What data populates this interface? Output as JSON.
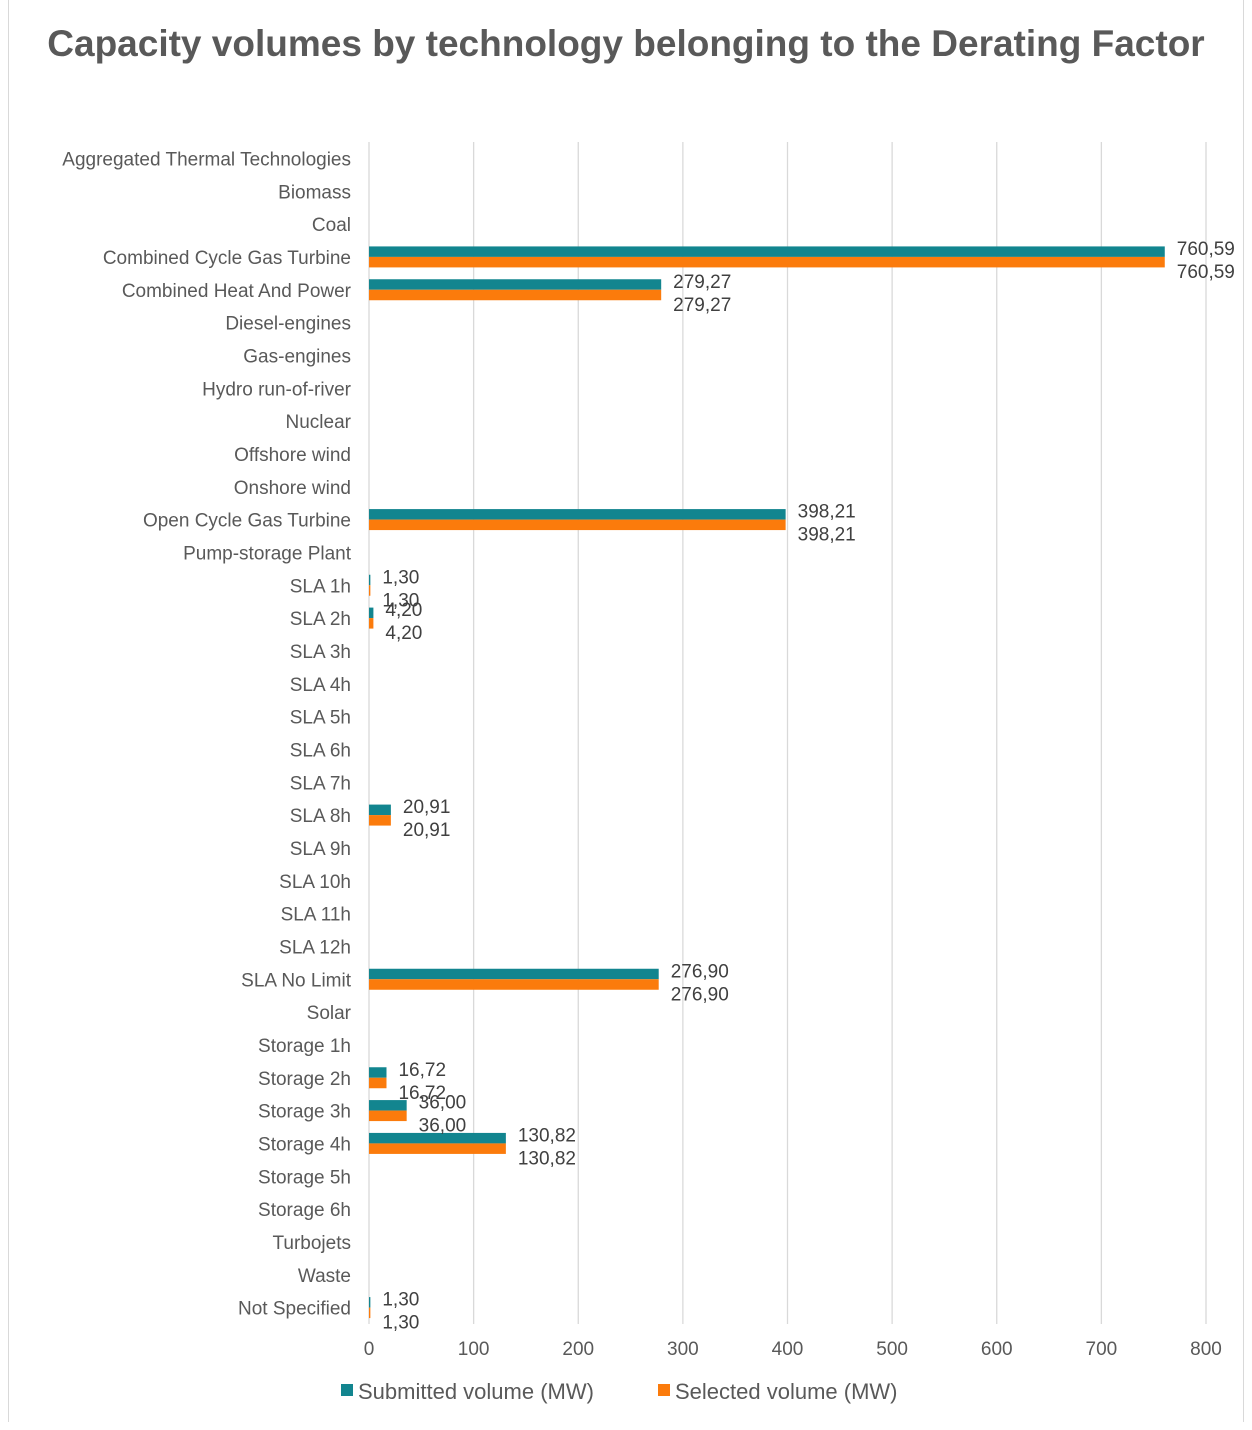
{
  "chart_data": {
    "type": "bar",
    "orientation": "horizontal",
    "title": "Capacity volumes by technology belonging to the Derating Factor",
    "categories": [
      "Aggregated Thermal Technologies",
      "Biomass",
      "Coal",
      "Combined Cycle Gas Turbine",
      "Combined Heat And Power",
      "Diesel-engines",
      "Gas-engines",
      "Hydro run-of-river",
      "Nuclear",
      "Offshore wind",
      "Onshore wind",
      "Open Cycle Gas Turbine",
      "Pump-storage Plant",
      "SLA 1h",
      "SLA 2h",
      "SLA 3h",
      "SLA 4h",
      "SLA 5h",
      "SLA 6h",
      "SLA 7h",
      "SLA 8h",
      "SLA 9h",
      "SLA 10h",
      "SLA 11h",
      "SLA 12h",
      "SLA No Limit",
      "Solar",
      "Storage 1h",
      "Storage 2h",
      "Storage 3h",
      "Storage 4h",
      "Storage 5h",
      "Storage 6h",
      "Turbojets",
      "Waste",
      "Not Specified"
    ],
    "series": [
      {
        "name": "Submitted volume (MW)",
        "color": "#12858f",
        "values": [
          null,
          null,
          null,
          760.59,
          279.27,
          null,
          null,
          null,
          null,
          null,
          null,
          398.21,
          null,
          1.3,
          4.2,
          null,
          null,
          null,
          null,
          null,
          20.91,
          null,
          null,
          null,
          null,
          276.9,
          null,
          null,
          16.72,
          36.0,
          130.82,
          null,
          null,
          null,
          null,
          1.3
        ],
        "labels": [
          "",
          "",
          "",
          "760,59",
          "279,27",
          "",
          "",
          "",
          "",
          "",
          "",
          "398,21",
          "",
          "1,30",
          "4,20",
          "",
          "",
          "",
          "",
          "",
          "20,91",
          "",
          "",
          "",
          "",
          "276,90",
          "",
          "",
          "16,72",
          "36,00",
          "130,82",
          "",
          "",
          "",
          "",
          "1,30"
        ]
      },
      {
        "name": "Selected volume (MW)",
        "color": "#fb7b0c",
        "values": [
          null,
          null,
          null,
          760.59,
          279.27,
          null,
          null,
          null,
          null,
          null,
          null,
          398.21,
          null,
          1.3,
          4.2,
          null,
          null,
          null,
          null,
          null,
          20.91,
          null,
          null,
          null,
          null,
          276.9,
          null,
          null,
          16.72,
          36.0,
          130.82,
          null,
          null,
          null,
          null,
          1.3
        ],
        "labels": [
          "",
          "",
          "",
          "760,59",
          "279,27",
          "",
          "",
          "",
          "",
          "",
          "",
          "398,21",
          "",
          "1,30",
          "4,20",
          "",
          "",
          "",
          "",
          "",
          "20,91",
          "",
          "",
          "",
          "",
          "276,90",
          "",
          "",
          "16,72",
          "36,00",
          "130,82",
          "",
          "",
          "",
          "",
          "1,30"
        ]
      }
    ],
    "xlim": [
      0,
      800
    ],
    "xticks": [
      0,
      100,
      200,
      300,
      400,
      500,
      600,
      700,
      800
    ],
    "grid": "vertical",
    "legend_position": "bottom",
    "gridline_color": "#d9d9d9"
  }
}
